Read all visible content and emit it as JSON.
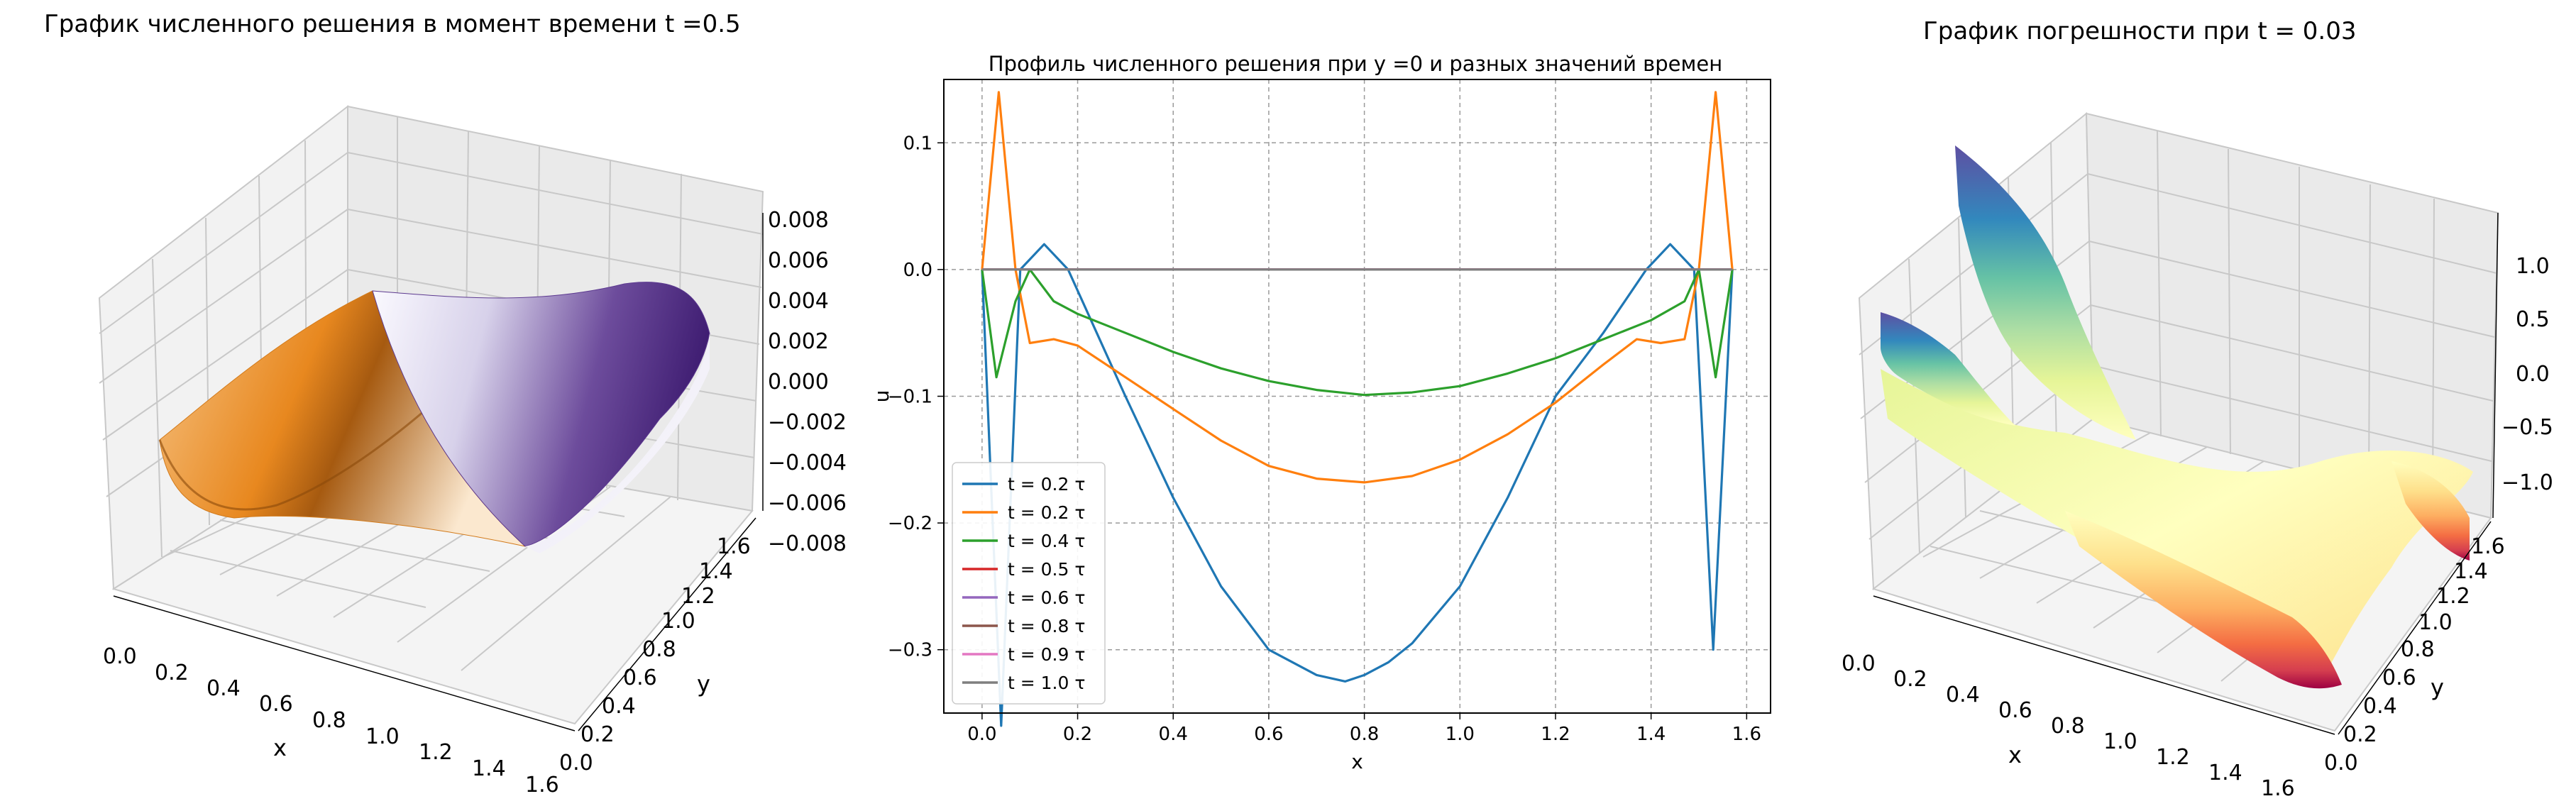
{
  "panel_left": {
    "title": "График численного решения в момент времени t =0.5",
    "xlabel": "x",
    "ylabel": "y",
    "x_ticks": [
      "0.0",
      "0.2",
      "0.4",
      "0.6",
      "0.8",
      "1.0",
      "1.2",
      "1.4",
      "1.6"
    ],
    "y_ticks": [
      "0.0",
      "0.2",
      "0.4",
      "0.6",
      "0.8",
      "1.0",
      "1.2",
      "1.4",
      "1.6"
    ],
    "z_ticks": [
      "0.008",
      "0.006",
      "0.004",
      "0.002",
      "0.000",
      "−0.002",
      "−0.004",
      "−0.006",
      "−0.008"
    ],
    "colormap": "PuOr"
  },
  "panel_right": {
    "title": "График погрешности при t = 0.03",
    "xlabel": "x",
    "ylabel": "y",
    "x_ticks": [
      "0.0",
      "0.2",
      "0.4",
      "0.6",
      "0.8",
      "1.0",
      "1.2",
      "1.4",
      "1.6"
    ],
    "y_ticks": [
      "0.0",
      "0.2",
      "0.4",
      "0.6",
      "0.8",
      "1.0",
      "1.2",
      "1.4",
      "1.6"
    ],
    "z_ticks": [
      "1.0",
      "0.5",
      "0.0",
      "−0.5",
      "−1.0"
    ],
    "colormap": "Spectral"
  },
  "chart_data": {
    "type": "line",
    "title": "Профиль численного решения при y =0 и разных значений времен",
    "xlabel": "x",
    "ylabel": "u",
    "xlim": [
      -0.08,
      1.65
    ],
    "ylim": [
      -0.35,
      0.15
    ],
    "x_ticks": [
      "0.0",
      "0.2",
      "0.4",
      "0.6",
      "0.8",
      "1.0",
      "1.2",
      "1.4",
      "1.6"
    ],
    "x_tick_values": [
      0.0,
      0.2,
      0.4,
      0.6,
      0.8,
      1.0,
      1.2,
      1.4,
      1.6
    ],
    "y_ticks": [
      "0.1",
      "0.0",
      "−0.1",
      "−0.2",
      "−0.3"
    ],
    "y_tick_values": [
      0.1,
      0.0,
      -0.1,
      -0.2,
      -0.3
    ],
    "grid": true,
    "legend_position": "lower-left",
    "series": [
      {
        "name": "t = 0.2 τ",
        "color": "#1f77b4",
        "x": [
          0.0,
          0.04,
          0.08,
          0.13,
          0.18,
          0.24,
          0.3,
          0.4,
          0.5,
          0.6,
          0.7,
          0.76,
          0.8,
          0.85,
          0.9,
          1.0,
          1.1,
          1.2,
          1.3,
          1.39,
          1.44,
          1.49,
          1.53,
          1.57
        ],
        "y": [
          0.0,
          -0.36,
          0.0,
          0.02,
          0.0,
          -0.05,
          -0.1,
          -0.18,
          -0.25,
          -0.3,
          -0.32,
          -0.325,
          -0.32,
          -0.31,
          -0.295,
          -0.25,
          -0.18,
          -0.1,
          -0.05,
          0.0,
          0.02,
          0.0,
          -0.3,
          0.0
        ]
      },
      {
        "name": "t = 0.2 τ",
        "color": "#ff7f0e",
        "x": [
          0.0,
          0.035,
          0.07,
          0.1,
          0.15,
          0.2,
          0.3,
          0.4,
          0.5,
          0.6,
          0.7,
          0.8,
          0.9,
          1.0,
          1.1,
          1.2,
          1.3,
          1.37,
          1.42,
          1.47,
          1.5,
          1.535,
          1.57
        ],
        "y": [
          0.0,
          0.14,
          0.0,
          -0.058,
          -0.055,
          -0.06,
          -0.085,
          -0.11,
          -0.135,
          -0.155,
          -0.165,
          -0.168,
          -0.163,
          -0.15,
          -0.13,
          -0.105,
          -0.075,
          -0.055,
          -0.058,
          -0.055,
          0.0,
          0.14,
          0.0
        ]
      },
      {
        "name": "t = 0.4 τ",
        "color": "#2ca02c",
        "x": [
          0.0,
          0.03,
          0.07,
          0.1,
          0.15,
          0.2,
          0.3,
          0.4,
          0.5,
          0.6,
          0.7,
          0.8,
          0.9,
          1.0,
          1.1,
          1.2,
          1.3,
          1.4,
          1.47,
          1.5,
          1.535,
          1.57
        ],
        "y": [
          0.0,
          -0.085,
          -0.025,
          0.0,
          -0.025,
          -0.035,
          -0.05,
          -0.065,
          -0.078,
          -0.088,
          -0.095,
          -0.099,
          -0.097,
          -0.092,
          -0.082,
          -0.07,
          -0.055,
          -0.04,
          -0.025,
          0.0,
          -0.085,
          0.0
        ]
      },
      {
        "name": "t = 0.5 τ",
        "color": "#d62728",
        "x": [
          0.0,
          1.57
        ],
        "y": [
          0.0,
          0.0
        ]
      },
      {
        "name": "t = 0.6 τ",
        "color": "#9467bd",
        "x": [
          0.0,
          1.57
        ],
        "y": [
          0.0,
          0.0
        ]
      },
      {
        "name": "t = 0.8 τ",
        "color": "#8c564b",
        "x": [
          0.0,
          1.57
        ],
        "y": [
          0.0,
          0.0
        ]
      },
      {
        "name": "t = 0.9 τ",
        "color": "#e377c2",
        "x": [
          0.0,
          1.57
        ],
        "y": [
          0.0,
          0.0
        ]
      },
      {
        "name": "t = 1.0 τ",
        "color": "#7f7f7f",
        "x": [
          0.0,
          1.57
        ],
        "y": [
          0.0,
          0.0
        ]
      }
    ]
  }
}
